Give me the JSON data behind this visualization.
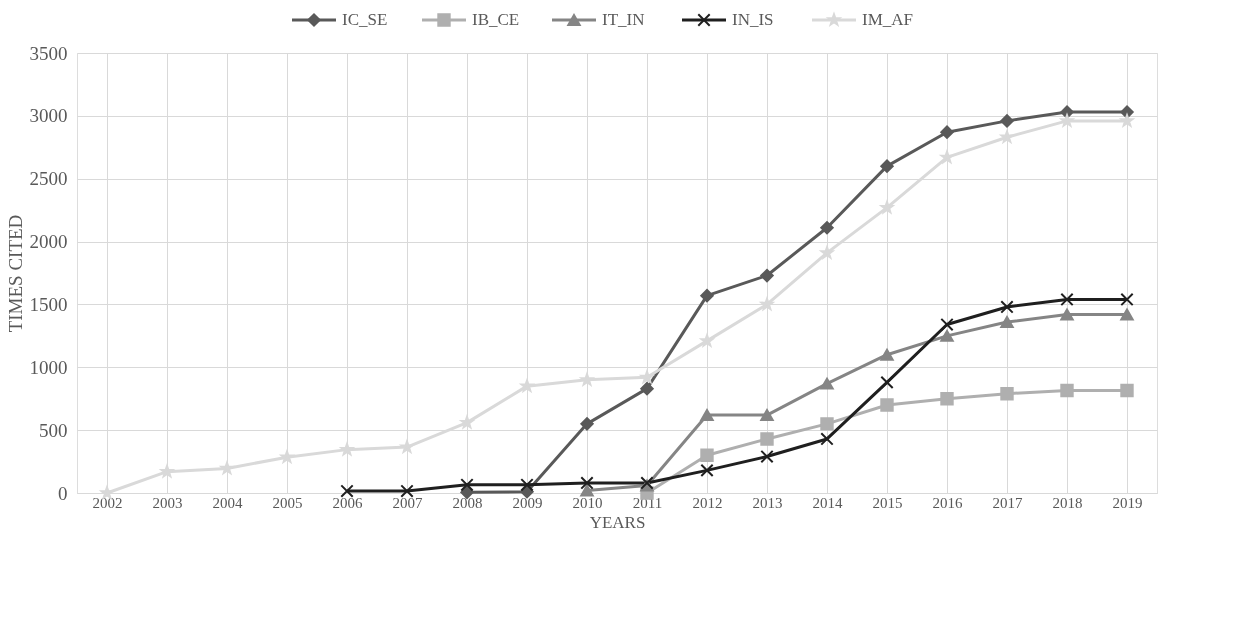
{
  "chart_data": {
    "type": "line",
    "xlabel": "YEARS",
    "ylabel": "TIMES CITED",
    "categories": [
      "2002",
      "2003",
      "2004",
      "2005",
      "2006",
      "2007",
      "2008",
      "2009",
      "2010",
      "2011",
      "2012",
      "2013",
      "2014",
      "2015",
      "2016",
      "2017",
      "2018",
      "2019"
    ],
    "series": [
      {
        "name": "IC_SE",
        "color": "#595959",
        "marker": "diamond",
        "values": [
          null,
          null,
          null,
          null,
          null,
          null,
          5,
          10,
          550,
          830,
          1570,
          1730,
          2110,
          2600,
          2870,
          2960,
          3030,
          3030
        ]
      },
      {
        "name": "IB_CE",
        "color": "#afafaf",
        "marker": "square",
        "values": [
          null,
          null,
          null,
          null,
          null,
          null,
          null,
          null,
          null,
          0,
          300,
          430,
          550,
          700,
          750,
          790,
          815,
          815
        ]
      },
      {
        "name": "IT_IN",
        "color": "#858585",
        "marker": "triangle",
        "values": [
          null,
          null,
          null,
          null,
          null,
          null,
          null,
          null,
          20,
          60,
          620,
          620,
          870,
          1100,
          1250,
          1360,
          1420,
          1420
        ]
      },
      {
        "name": "IN_IS",
        "color": "#1f1f1f",
        "marker": "cross",
        "values": [
          null,
          null,
          null,
          null,
          15,
          15,
          65,
          65,
          80,
          80,
          180,
          290,
          430,
          880,
          1340,
          1480,
          1540,
          1540
        ]
      },
      {
        "name": "IM_AF",
        "color": "#d9d9d9",
        "marker": "star",
        "values": [
          0,
          170,
          195,
          285,
          345,
          365,
          560,
          850,
          900,
          920,
          1210,
          1500,
          1910,
          2270,
          2670,
          2830,
          2960,
          2960
        ]
      }
    ],
    "ylim": [
      0,
      3500
    ],
    "yticks": [
      0,
      500,
      {
        "value": 1000,
        "label": "1000"
      },
      {
        "value": 1500,
        "label": "1500"
      },
      {
        "value": 2000,
        "label": "2000"
      },
      {
        "value": 2500,
        "label": "2500"
      },
      {
        "value": 3000,
        "label": "3000"
      },
      {
        "value": 3500,
        "label": "3500"
      }
    ],
    "grid": true,
    "legend": "top",
    "line_style": "solid"
  }
}
